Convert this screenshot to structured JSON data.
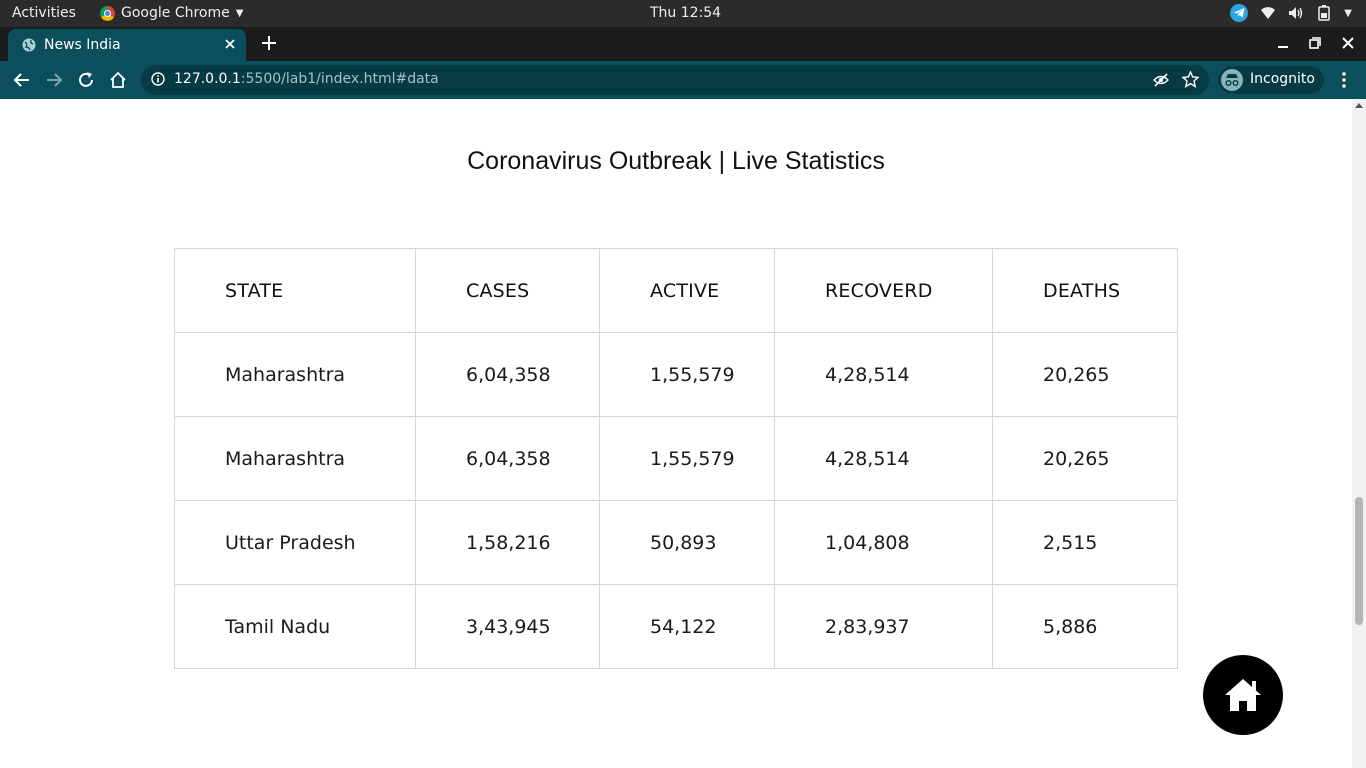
{
  "system_bar": {
    "activities": "Activities",
    "app_name": "Google Chrome",
    "clock": "Thu 12:54"
  },
  "browser": {
    "tab_title": "News India",
    "url_host": "127.0.0.1",
    "url_rest": ":5500/lab1/index.html#data",
    "profile_label": "Incognito"
  },
  "page": {
    "heading": "Coronavirus Outbreak | Live Statistics",
    "table": {
      "headers": [
        "STATE",
        "CASES",
        "ACTIVE",
        "RECOVERD",
        "DEATHS"
      ],
      "rows": [
        [
          "Maharashtra",
          "6,04,358",
          "1,55,579",
          "4,28,514",
          "20,265"
        ],
        [
          "Maharashtra",
          "6,04,358",
          "1,55,579",
          "4,28,514",
          "20,265"
        ],
        [
          "Uttar Pradesh",
          "1,58,216",
          "50,893",
          "1,04,808",
          "2,515"
        ],
        [
          "Tamil Nadu",
          "3,43,945",
          "54,122",
          "2,83,937",
          "5,886"
        ]
      ]
    }
  },
  "icons": {
    "home_button": "home-icon"
  },
  "colors": {
    "chrome_toolbar": "#0b4f5c",
    "omnibox": "#063a44",
    "fab": "#000000"
  }
}
